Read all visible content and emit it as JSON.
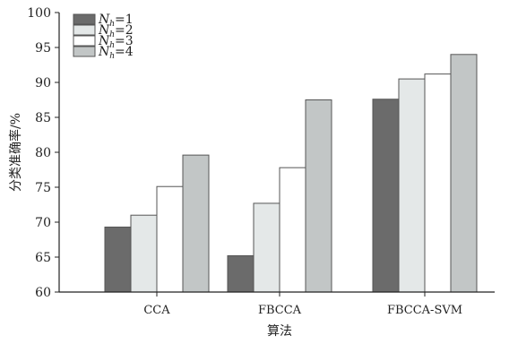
{
  "chart_data": {
    "type": "bar",
    "categories": [
      "CCA",
      "FBCCA",
      "FBCCA-SVM"
    ],
    "series": [
      {
        "name": "N_h=1",
        "legend_base": "N",
        "legend_sub": "h",
        "legend_value": "=1",
        "color": "#6b6b6b",
        "values": [
          69.3,
          65.2,
          87.6
        ]
      },
      {
        "name": "N_h=2",
        "legend_base": "N",
        "legend_sub": "h",
        "legend_value": "=2",
        "color": "#e4e8e8",
        "values": [
          71.0,
          72.7,
          90.5
        ]
      },
      {
        "name": "N_h=3",
        "legend_base": "N",
        "legend_sub": "h",
        "legend_value": "=3",
        "color": "#ffffff",
        "values": [
          75.1,
          77.8,
          91.2
        ]
      },
      {
        "name": "N_h=4",
        "legend_base": "N",
        "legend_sub": "h",
        "legend_value": "=4",
        "color": "#c2c6c6",
        "values": [
          79.6,
          87.5,
          94.0
        ]
      }
    ],
    "xlabel": "算法",
    "ylabel": "分类准确率/%",
    "ylim": [
      60,
      100
    ],
    "yticks": [
      60,
      65,
      70,
      75,
      80,
      85,
      90,
      95,
      100
    ],
    "legend_position": "top-left",
    "grid": false
  }
}
